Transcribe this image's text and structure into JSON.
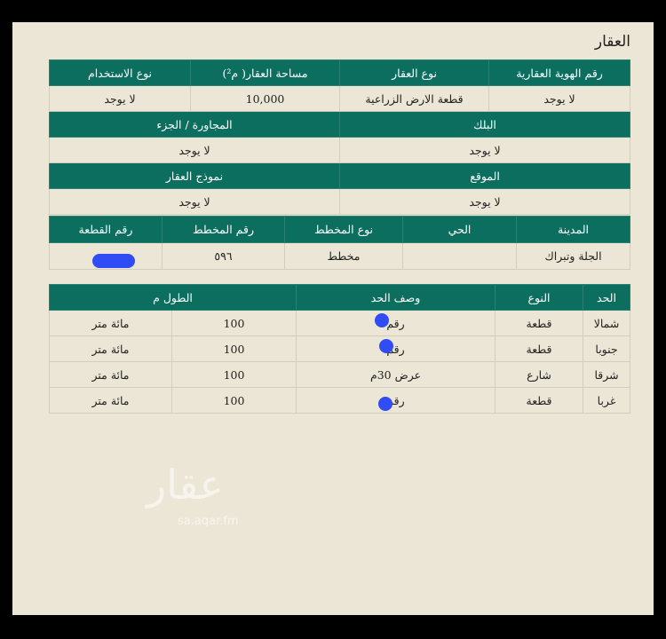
{
  "title": "العقار",
  "property": {
    "headers1": [
      "رقم الهوية العقارية",
      "نوع العقار",
      "مساحة العقار( م²)",
      "نوع الاستخدام"
    ],
    "values1": [
      "لا يوجد",
      "قطعة الارض الزراعية",
      "10,000",
      "لا يوجد"
    ],
    "headers2": [
      "البلك",
      "المجاورة / الجزء"
    ],
    "values2": [
      "لا يوجد",
      "لا يوجد"
    ],
    "headers3": [
      "الموقع",
      "نموذج العقار"
    ],
    "values3": [
      "لا يوجد",
      "لا يوجد"
    ],
    "headers4": [
      "المدينة",
      "الحي",
      "نوع المخطط",
      "رقم المخطط",
      "رقم القطعة"
    ],
    "values4": [
      "الجلة وتبراك",
      "",
      "مخطط",
      "٥٩٦",
      ""
    ]
  },
  "boundaries": {
    "headers": [
      "الحد",
      "النوع",
      "وصف الحد",
      "الطول م"
    ],
    "rows": [
      {
        "side": "شمالا",
        "type": "قطعة",
        "desc": "رقم",
        "length": "100",
        "length_text": "مائة متر"
      },
      {
        "side": "جنوبا",
        "type": "قطعة",
        "desc": "رقم",
        "length": "100",
        "length_text": "مائة متر"
      },
      {
        "side": "شرقا",
        "type": "شارع",
        "desc": "عرض 30م",
        "length": "100",
        "length_text": "مائة متر"
      },
      {
        "side": "غربا",
        "type": "قطعة",
        "desc": "رقم",
        "length": "100",
        "length_text": "مائة متر"
      }
    ]
  },
  "watermark": {
    "logo": "عقار",
    "site": "sa.aqar.fm"
  },
  "colors": {
    "header": "#0b6e5e",
    "background": "#ebe6d6",
    "redaction": "#2f4cf5"
  }
}
